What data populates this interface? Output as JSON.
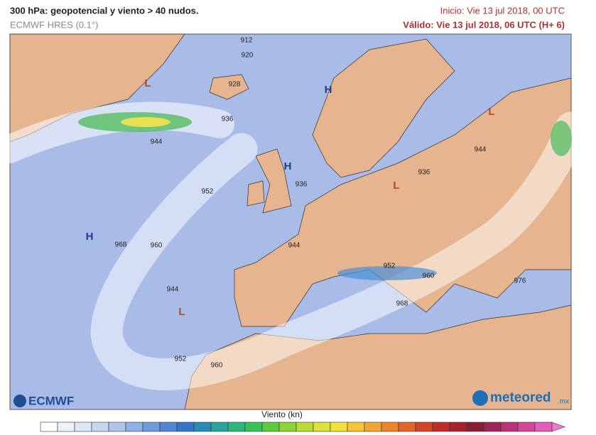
{
  "header": {
    "title": "300 hPa: geopotencial y viento > 40 nudos.",
    "model": "ECMWF HRES (0.1°)",
    "init": "Inicio: Vie 13 jul 2018, 00 UTC",
    "valid": "Válido: Vie 13 jul 2018, 06 UTC (H+ 6)"
  },
  "map": {
    "contour_labels": [
      "912",
      "920",
      "928",
      "936",
      "944",
      "952",
      "936",
      "968",
      "960",
      "944",
      "944",
      "952",
      "960",
      "976",
      "968",
      "952",
      "960",
      "936",
      "944"
    ],
    "pressure_centers": [
      "L",
      "L",
      "L",
      "L",
      "H",
      "H",
      "H"
    ]
  },
  "logos": {
    "left": "ECMWF",
    "right": "meteored",
    "right_suffix": ".mx"
  },
  "legend": {
    "title": "Viento (kn)"
  }
}
